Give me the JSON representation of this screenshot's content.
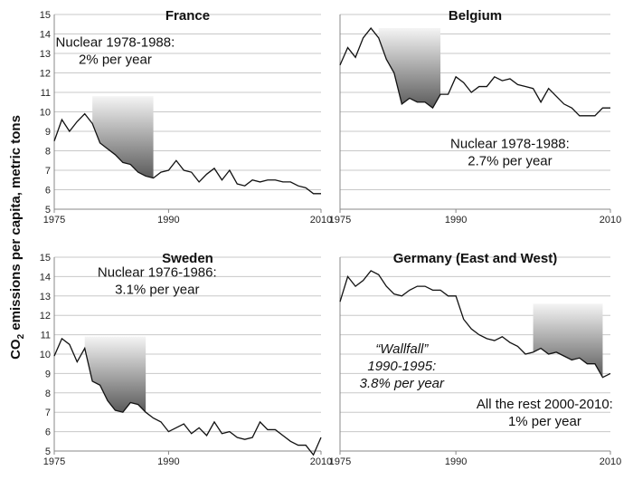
{
  "y_axis_label": {
    "main": "CO",
    "sub": "2",
    "rest": " emissions per capita, metric tons"
  },
  "chart_data": [
    {
      "type": "line",
      "title": "France",
      "xlim": [
        1975,
        2010
      ],
      "ylim": [
        5,
        15
      ],
      "xticks": [
        1975,
        1990,
        2010
      ],
      "yticks": [
        5,
        6,
        7,
        8,
        9,
        10,
        11,
        12,
        13,
        14,
        15
      ],
      "show_y_tick_labels": true,
      "x": [
        1975,
        1976,
        1977,
        1978,
        1979,
        1980,
        1981,
        1982,
        1983,
        1984,
        1985,
        1986,
        1987,
        1988,
        1989,
        1990,
        1991,
        1992,
        1993,
        1994,
        1995,
        1996,
        1997,
        1998,
        1999,
        2000,
        2001,
        2002,
        2003,
        2004,
        2005,
        2006,
        2007,
        2008,
        2009,
        2010
      ],
      "y": [
        8.5,
        9.6,
        9.0,
        9.5,
        9.9,
        9.4,
        8.4,
        8.1,
        7.8,
        7.4,
        7.3,
        6.9,
        6.7,
        6.6,
        6.9,
        7.0,
        7.5,
        7.0,
        6.9,
        6.4,
        6.8,
        7.1,
        6.5,
        7.0,
        6.3,
        6.2,
        6.5,
        6.4,
        6.5,
        6.5,
        6.4,
        6.4,
        6.2,
        6.1,
        5.8,
        5.8
      ],
      "shade": {
        "x": [
          1980,
          1988
        ],
        "top": 10.8
      },
      "annotations": [
        {
          "lines": [
            "Nuclear 1978-1988:",
            "2% per year"
          ],
          "italic_lines": [],
          "at": [
            1983,
            13.35
          ],
          "anchor": "middle"
        }
      ]
    },
    {
      "type": "line",
      "title": "Belgium",
      "xlim": [
        1975,
        2010
      ],
      "ylim": [
        5,
        15
      ],
      "xticks": [
        1975,
        1990,
        2010
      ],
      "yticks": [
        5,
        6,
        7,
        8,
        9,
        10,
        11,
        12,
        13,
        14,
        15
      ],
      "show_y_tick_labels": false,
      "x": [
        1975,
        1976,
        1977,
        1978,
        1979,
        1980,
        1981,
        1982,
        1983,
        1984,
        1985,
        1986,
        1987,
        1988,
        1989,
        1990,
        1991,
        1992,
        1993,
        1994,
        1995,
        1996,
        1997,
        1998,
        1999,
        2000,
        2001,
        2002,
        2003,
        2004,
        2005,
        2006,
        2007,
        2008,
        2009,
        2010
      ],
      "y": [
        12.4,
        13.3,
        12.8,
        13.8,
        14.3,
        13.8,
        12.7,
        12.0,
        10.4,
        10.7,
        10.5,
        10.5,
        10.2,
        10.9,
        10.9,
        11.8,
        11.5,
        11.0,
        11.3,
        11.3,
        11.8,
        11.6,
        11.7,
        11.4,
        11.3,
        11.2,
        10.5,
        11.2,
        10.8,
        10.4,
        10.2,
        9.8,
        9.8,
        9.8,
        10.2,
        10.2
      ],
      "shade": {
        "x": [
          1980,
          1988
        ],
        "top": 14.3
      },
      "annotations": [
        {
          "lines": [
            "Nuclear 1978-1988:",
            "2.7% per year"
          ],
          "italic_lines": [],
          "at": [
            1997,
            8.15
          ],
          "anchor": "middle"
        }
      ]
    },
    {
      "type": "line",
      "title": "Sweden",
      "xlim": [
        1975,
        2010
      ],
      "ylim": [
        5,
        15
      ],
      "xticks": [
        1975,
        1990,
        2010
      ],
      "yticks": [
        5,
        6,
        7,
        8,
        9,
        10,
        11,
        12,
        13,
        14,
        15
      ],
      "show_y_tick_labels": true,
      "x": [
        1975,
        1976,
        1977,
        1978,
        1979,
        1980,
        1981,
        1982,
        1983,
        1984,
        1985,
        1986,
        1987,
        1988,
        1989,
        1990,
        1991,
        1992,
        1993,
        1994,
        1995,
        1996,
        1997,
        1998,
        1999,
        2000,
        2001,
        2002,
        2003,
        2004,
        2005,
        2006,
        2007,
        2008,
        2009,
        2010
      ],
      "y": [
        9.9,
        10.8,
        10.5,
        9.6,
        10.3,
        8.6,
        8.4,
        7.6,
        7.1,
        7.0,
        7.5,
        7.4,
        7.0,
        6.7,
        6.5,
        6.0,
        6.2,
        6.4,
        5.9,
        6.2,
        5.8,
        6.5,
        5.9,
        6.0,
        5.7,
        5.6,
        5.7,
        6.5,
        6.1,
        6.1,
        5.8,
        5.5,
        5.3,
        5.3,
        4.8,
        5.7
      ],
      "shade": {
        "x": [
          1979,
          1987
        ],
        "top": 10.9
      },
      "annotations": [
        {
          "lines": [
            "Nuclear 1976-1986:",
            "3.1% per year"
          ],
          "italic_lines": [],
          "at": [
            1988.5,
            14.0
          ],
          "anchor": "middle"
        }
      ]
    },
    {
      "type": "line",
      "title": "Germany (East and West)",
      "xlim": [
        1975,
        2010
      ],
      "ylim": [
        5,
        15
      ],
      "xticks": [
        1975,
        1990,
        2010
      ],
      "yticks": [
        5,
        6,
        7,
        8,
        9,
        10,
        11,
        12,
        13,
        14,
        15
      ],
      "show_y_tick_labels": false,
      "x": [
        1975,
        1976,
        1977,
        1978,
        1979,
        1980,
        1981,
        1982,
        1983,
        1984,
        1985,
        1986,
        1987,
        1988,
        1989,
        1990,
        1991,
        1992,
        1993,
        1994,
        1995,
        1996,
        1997,
        1998,
        1999,
        2000,
        2001,
        2002,
        2003,
        2004,
        2005,
        2006,
        2007,
        2008,
        2009,
        2010
      ],
      "y": [
        12.7,
        14.0,
        13.5,
        13.8,
        14.3,
        14.1,
        13.5,
        13.1,
        13.0,
        13.3,
        13.5,
        13.5,
        13.3,
        13.3,
        13.0,
        13.0,
        11.8,
        11.3,
        11.0,
        10.8,
        10.7,
        10.9,
        10.6,
        10.4,
        10.0,
        10.1,
        10.3,
        10.0,
        10.1,
        9.9,
        9.7,
        9.8,
        9.5,
        9.5,
        8.8,
        9.0
      ],
      "shade": {
        "x": [
          2000,
          2009
        ],
        "top": 12.6
      },
      "annotations": [
        {
          "lines": [
            "“Wallfall”",
            "1990-1995:",
            "3.8% per year"
          ],
          "italic_lines": [
            0,
            1,
            2
          ],
          "at": [
            1983,
            10.05
          ],
          "anchor": "middle"
        },
        {
          "lines": [
            "All the rest 2000-2010:",
            "1% per year"
          ],
          "italic_lines": [],
          "at": [
            2001.5,
            7.2
          ],
          "anchor": "middle"
        }
      ]
    }
  ]
}
